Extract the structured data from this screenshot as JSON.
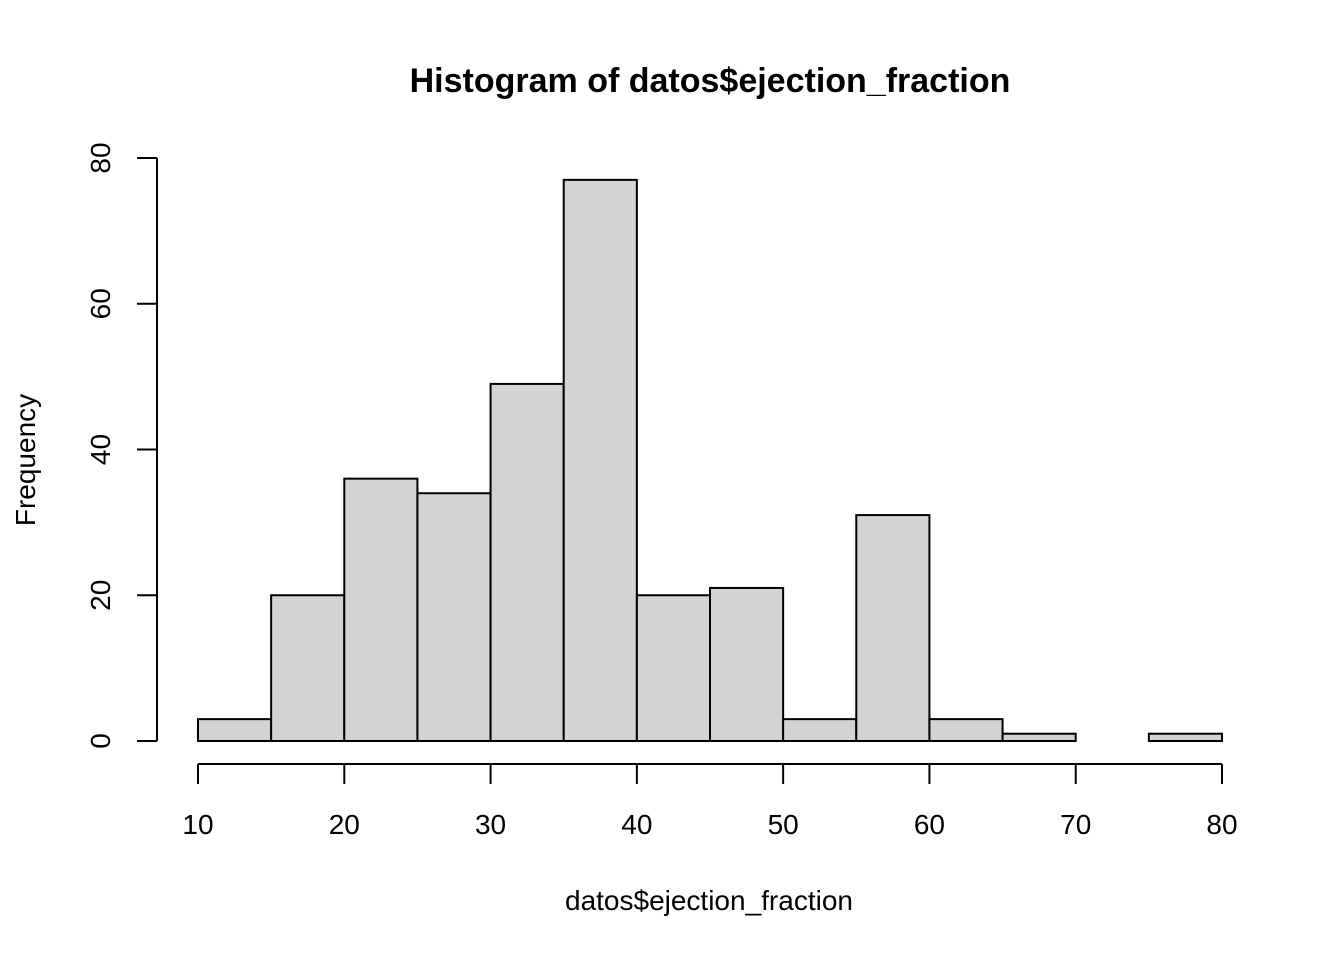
{
  "chart_data": {
    "type": "bar",
    "title": "Histogram of datos$ejection_fraction",
    "xlabel": "datos$ejection_fraction",
    "ylabel": "Frequency",
    "bins": [
      {
        "from": 10,
        "to": 15,
        "count": 3
      },
      {
        "from": 15,
        "to": 20,
        "count": 20
      },
      {
        "from": 20,
        "to": 25,
        "count": 36
      },
      {
        "from": 25,
        "to": 30,
        "count": 34
      },
      {
        "from": 30,
        "to": 35,
        "count": 49
      },
      {
        "from": 35,
        "to": 40,
        "count": 77
      },
      {
        "from": 40,
        "to": 45,
        "count": 20
      },
      {
        "from": 45,
        "to": 50,
        "count": 21
      },
      {
        "from": 50,
        "to": 55,
        "count": 3
      },
      {
        "from": 55,
        "to": 60,
        "count": 31
      },
      {
        "from": 60,
        "to": 65,
        "count": 3
      },
      {
        "from": 65,
        "to": 70,
        "count": 1
      },
      {
        "from": 70,
        "to": 75,
        "count": 0
      },
      {
        "from": 75,
        "to": 80,
        "count": 1
      }
    ],
    "xticks": [
      10,
      20,
      30,
      40,
      50,
      60,
      70,
      80
    ],
    "yticks": [
      0,
      20,
      40,
      60,
      80
    ],
    "xlim": [
      10,
      80
    ],
    "ylim": [
      0,
      80
    ],
    "grid": false,
    "bar_color": "#d3d3d3",
    "border_color": "#000000"
  }
}
